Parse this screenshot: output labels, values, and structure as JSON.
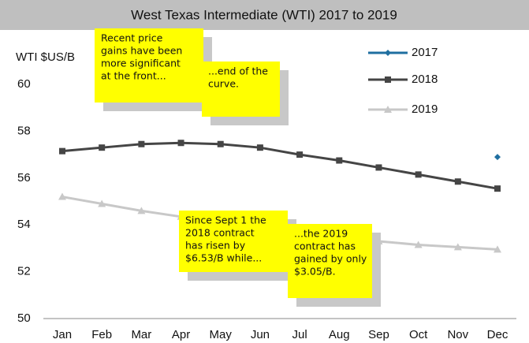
{
  "chart_data": {
    "type": "line",
    "title": "West Texas Intermediate (WTI) 2017 to 2019",
    "y_label": "WTI $US/B",
    "categories": [
      "Jan",
      "Feb",
      "Mar",
      "Apr",
      "May",
      "Jun",
      "Jul",
      "Aug",
      "Sep",
      "Oct",
      "Nov",
      "Dec"
    ],
    "series": [
      {
        "name": "2017",
        "color": "#1f6fa0",
        "marker": "diamond",
        "values": [
          null,
          null,
          null,
          null,
          null,
          null,
          null,
          null,
          null,
          null,
          null,
          56.9
        ]
      },
      {
        "name": "2018",
        "color": "#454545",
        "marker": "square",
        "values": [
          57.15,
          57.3,
          57.45,
          57.5,
          57.45,
          57.3,
          57.0,
          56.75,
          56.45,
          56.15,
          55.85,
          55.55
        ]
      },
      {
        "name": "2019",
        "color": "#c8c8c8",
        "marker": "triangle",
        "values": [
          55.2,
          54.9,
          54.6,
          54.35,
          54.1,
          53.9,
          53.7,
          53.5,
          53.3,
          53.15,
          53.05,
          52.95
        ]
      }
    ],
    "ylim": [
      50,
      60
    ],
    "yticks": [
      50,
      52,
      54,
      56,
      58,
      60
    ],
    "annotations": [
      {
        "lines": [
          "Recent price",
          "gains have been",
          "more significant",
          "at the front..."
        ]
      },
      {
        "lines": [
          "...end of the",
          "curve."
        ]
      },
      {
        "lines": [
          "Since Sept 1 the",
          "2018 contract",
          "has risen by",
          "$6.53/B while..."
        ]
      },
      {
        "lines": [
          "...the 2019",
          "contract has",
          "gained by only",
          "$3.05/B."
        ]
      }
    ]
  }
}
